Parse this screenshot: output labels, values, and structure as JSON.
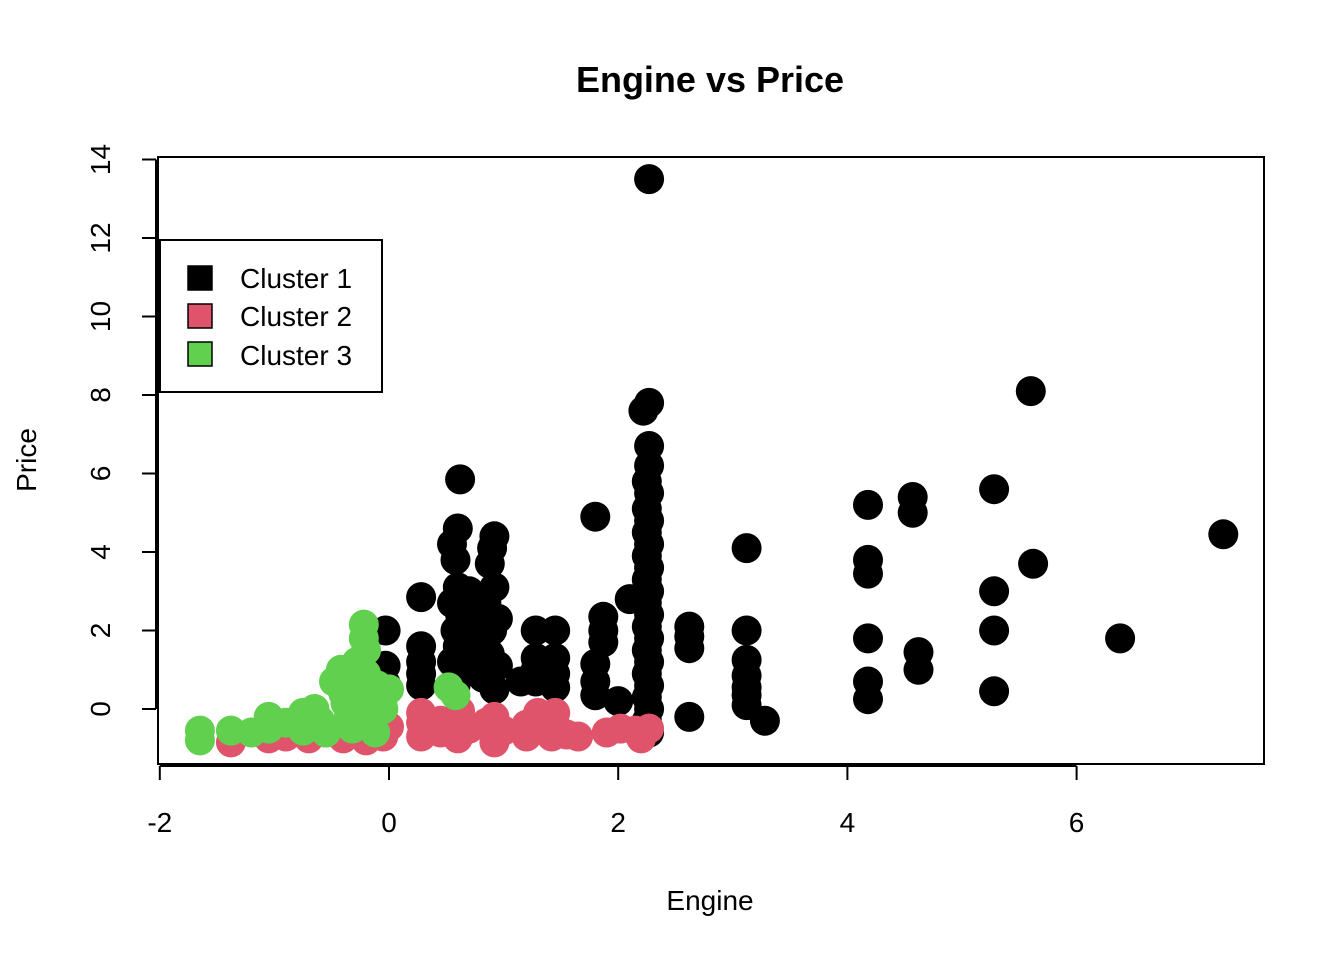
{
  "chart_data": {
    "type": "scatter",
    "title": "Engine vs Price",
    "xlabel": "Engine",
    "ylabel": "Price",
    "xlim": [
      -2,
      7.6
    ],
    "ylim": [
      -1.4,
      14.1
    ],
    "x_ticks": [
      -2,
      0,
      2,
      4,
      6
    ],
    "y_ticks": [
      0,
      2,
      4,
      6,
      8,
      10,
      12,
      14
    ],
    "grid": false,
    "legend_position": "top-left",
    "series": [
      {
        "name": "Cluster 1",
        "color": "#000000",
        "points": [
          [
            2.27,
            13.5
          ],
          [
            5.6,
            8.1
          ],
          [
            2.27,
            7.8
          ],
          [
            2.22,
            7.6
          ],
          [
            2.27,
            6.7
          ],
          [
            2.27,
            6.2
          ],
          [
            2.25,
            5.8
          ],
          [
            2.27,
            5.5
          ],
          [
            2.25,
            5.1
          ],
          [
            2.27,
            4.8
          ],
          [
            2.25,
            4.5
          ],
          [
            2.27,
            4.2
          ],
          [
            2.25,
            3.9
          ],
          [
            2.27,
            3.6
          ],
          [
            2.25,
            3.3
          ],
          [
            2.27,
            3.0
          ],
          [
            2.25,
            2.7
          ],
          [
            2.27,
            2.4
          ],
          [
            2.25,
            2.1
          ],
          [
            2.27,
            1.8
          ],
          [
            2.25,
            1.5
          ],
          [
            2.27,
            1.2
          ],
          [
            2.25,
            0.9
          ],
          [
            2.27,
            0.6
          ],
          [
            2.25,
            0.3
          ],
          [
            2.27,
            0.0
          ],
          [
            2.25,
            -0.3
          ],
          [
            2.27,
            -0.6
          ],
          [
            2.1,
            2.8
          ],
          [
            0.62,
            5.85
          ],
          [
            0.6,
            4.6
          ],
          [
            0.55,
            4.2
          ],
          [
            0.58,
            3.8
          ],
          [
            0.6,
            3.1
          ],
          [
            0.55,
            2.7
          ],
          [
            0.62,
            2.4
          ],
          [
            0.58,
            2.0
          ],
          [
            0.6,
            1.6
          ],
          [
            0.55,
            1.2
          ],
          [
            0.62,
            0.9
          ],
          [
            0.58,
            0.6
          ],
          [
            0.92,
            4.4
          ],
          [
            0.9,
            4.1
          ],
          [
            0.88,
            3.7
          ],
          [
            0.92,
            3.1
          ],
          [
            0.85,
            2.7
          ],
          [
            0.95,
            2.3
          ],
          [
            0.9,
            2.0
          ],
          [
            0.8,
            1.7
          ],
          [
            0.88,
            1.4
          ],
          [
            0.95,
            1.1
          ],
          [
            0.82,
            0.8
          ],
          [
            0.92,
            0.5
          ],
          [
            0.75,
            2.5
          ],
          [
            0.7,
            1.9
          ],
          [
            0.78,
            1.2
          ],
          [
            0.7,
            3.0
          ],
          [
            0.28,
            2.85
          ],
          [
            0.28,
            1.6
          ],
          [
            0.28,
            1.2
          ],
          [
            0.28,
            0.9
          ],
          [
            0.28,
            0.6
          ],
          [
            -0.03,
            2.0
          ],
          [
            -0.03,
            1.1
          ],
          [
            -0.03,
            0.65
          ],
          [
            1.28,
            2.0
          ],
          [
            1.28,
            1.3
          ],
          [
            1.28,
            1.0
          ],
          [
            1.28,
            0.7
          ],
          [
            1.45,
            2.0
          ],
          [
            1.45,
            1.3
          ],
          [
            1.45,
            0.9
          ],
          [
            1.45,
            0.55
          ],
          [
            1.15,
            0.7
          ],
          [
            1.8,
            4.9
          ],
          [
            1.87,
            2.35
          ],
          [
            1.87,
            2.0
          ],
          [
            1.87,
            1.7
          ],
          [
            1.8,
            1.15
          ],
          [
            1.8,
            0.7
          ],
          [
            1.8,
            0.35
          ],
          [
            2.0,
            0.2
          ],
          [
            2.62,
            2.1
          ],
          [
            2.62,
            1.85
          ],
          [
            2.62,
            1.55
          ],
          [
            2.62,
            -0.2
          ],
          [
            3.12,
            4.1
          ],
          [
            3.12,
            2.0
          ],
          [
            3.12,
            1.25
          ],
          [
            3.12,
            0.85
          ],
          [
            3.12,
            0.55
          ],
          [
            3.12,
            0.35
          ],
          [
            3.12,
            0.1
          ],
          [
            3.28,
            -0.3
          ],
          [
            4.18,
            5.2
          ],
          [
            4.18,
            3.8
          ],
          [
            4.18,
            3.45
          ],
          [
            4.18,
            1.8
          ],
          [
            4.18,
            0.7
          ],
          [
            4.18,
            0.25
          ],
          [
            4.57,
            5.4
          ],
          [
            4.57,
            5.0
          ],
          [
            4.62,
            1.45
          ],
          [
            4.62,
            1.0
          ],
          [
            5.28,
            5.6
          ],
          [
            5.28,
            3.0
          ],
          [
            5.28,
            2.0
          ],
          [
            5.28,
            0.45
          ],
          [
            5.62,
            3.7
          ],
          [
            6.38,
            1.8
          ],
          [
            7.28,
            4.45
          ]
        ]
      },
      {
        "name": "Cluster 2",
        "color": "#DF536B",
        "points": [
          [
            -1.38,
            -0.85
          ],
          [
            -1.05,
            -0.75
          ],
          [
            -0.9,
            -0.7
          ],
          [
            -0.7,
            -0.75
          ],
          [
            -0.55,
            -0.6
          ],
          [
            -0.4,
            -0.75
          ],
          [
            -0.2,
            -0.8
          ],
          [
            -0.05,
            -0.7
          ],
          [
            0.0,
            -0.45
          ],
          [
            0.28,
            -0.7
          ],
          [
            0.28,
            -0.35
          ],
          [
            0.28,
            -0.1
          ],
          [
            0.45,
            -0.6
          ],
          [
            0.45,
            -0.3
          ],
          [
            0.6,
            -0.75
          ],
          [
            0.6,
            -0.4
          ],
          [
            0.62,
            -0.05
          ],
          [
            0.7,
            -0.5
          ],
          [
            0.92,
            -0.85
          ],
          [
            0.92,
            -0.5
          ],
          [
            0.92,
            -0.2
          ],
          [
            0.85,
            -0.35
          ],
          [
            1.0,
            -0.55
          ],
          [
            1.2,
            -0.7
          ],
          [
            1.2,
            -0.4
          ],
          [
            1.3,
            -0.1
          ],
          [
            1.42,
            -0.7
          ],
          [
            1.45,
            -0.4
          ],
          [
            1.45,
            -0.1
          ],
          [
            1.55,
            -0.65
          ],
          [
            1.65,
            -0.7
          ],
          [
            1.9,
            -0.6
          ],
          [
            2.02,
            -0.5
          ],
          [
            2.15,
            -0.55
          ],
          [
            2.2,
            -0.75
          ],
          [
            2.27,
            -0.5
          ]
        ]
      },
      {
        "name": "Cluster 3",
        "color": "#61D04F",
        "points": [
          [
            -1.65,
            -0.55
          ],
          [
            -1.65,
            -0.8
          ],
          [
            -1.38,
            -0.55
          ],
          [
            -1.2,
            -0.6
          ],
          [
            -1.05,
            -0.2
          ],
          [
            -1.05,
            -0.5
          ],
          [
            -0.9,
            -0.35
          ],
          [
            -0.75,
            -0.1
          ],
          [
            -0.75,
            -0.55
          ],
          [
            -0.65,
            0.0
          ],
          [
            -0.6,
            -0.3
          ],
          [
            -0.55,
            -0.6
          ],
          [
            -0.48,
            0.7
          ],
          [
            -0.42,
            1.0
          ],
          [
            -0.4,
            0.4
          ],
          [
            -0.38,
            0.15
          ],
          [
            -0.35,
            -0.2
          ],
          [
            -0.32,
            -0.5
          ],
          [
            -0.3,
            0.8
          ],
          [
            -0.28,
            1.2
          ],
          [
            -0.25,
            0.5
          ],
          [
            -0.22,
            2.15
          ],
          [
            -0.22,
            1.8
          ],
          [
            -0.2,
            1.5
          ],
          [
            -0.2,
            0.9
          ],
          [
            -0.18,
            0.2
          ],
          [
            -0.15,
            -0.3
          ],
          [
            -0.12,
            -0.6
          ],
          [
            -0.1,
            0.6
          ],
          [
            -0.05,
            0.3
          ],
          [
            -0.05,
            0.0
          ],
          [
            0.0,
            0.5
          ],
          [
            0.52,
            0.55
          ],
          [
            0.58,
            0.35
          ]
        ]
      }
    ]
  }
}
